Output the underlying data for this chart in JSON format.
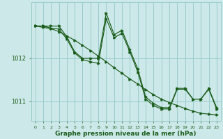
{
  "background_color": "#cce8e8",
  "grid_color": "#99cccc",
  "line_color": "#1a5c1a",
  "xlabel": "Graphe pression niveau de la mer (hPa)",
  "xlabel_fontsize": 6.5,
  "ylabel_ticks": [
    1011,
    1012
  ],
  "xlim": [
    -0.5,
    23.5
  ],
  "ylim": [
    1010.55,
    1013.3
  ],
  "hours": [
    0,
    1,
    2,
    3,
    4,
    5,
    6,
    7,
    8,
    9,
    10,
    11,
    12,
    13,
    14,
    15,
    16,
    17,
    18,
    19,
    20,
    21,
    22,
    23
  ],
  "series_spiky": [
    1012.75,
    1012.75,
    1012.75,
    1012.75,
    1012.5,
    1012.15,
    1012.0,
    1012.0,
    1012.0,
    1013.05,
    1012.55,
    1012.65,
    1012.2,
    1011.75,
    1011.1,
    1010.95,
    1010.85,
    1010.85,
    1011.3,
    1011.3,
    1011.05,
    1011.05,
    1011.3,
    1010.85
  ],
  "series_diag": [
    1012.75,
    1012.72,
    1012.69,
    1012.62,
    1012.52,
    1012.42,
    1012.3,
    1012.18,
    1012.05,
    1011.92,
    1011.78,
    1011.65,
    1011.52,
    1011.4,
    1011.27,
    1011.15,
    1011.05,
    1010.97,
    1010.9,
    1010.83,
    1010.77,
    1010.72,
    1010.7,
    1010.68
  ],
  "series_close": [
    1012.75,
    1012.75,
    1012.7,
    1012.68,
    1012.45,
    1012.12,
    1011.97,
    1011.92,
    1011.88,
    1012.92,
    1012.48,
    1012.58,
    1012.15,
    1011.68,
    1011.05,
    1010.9,
    1010.82,
    1010.82,
    1011.28,
    1011.28,
    1011.05,
    1011.05,
    1011.28,
    1010.82
  ]
}
